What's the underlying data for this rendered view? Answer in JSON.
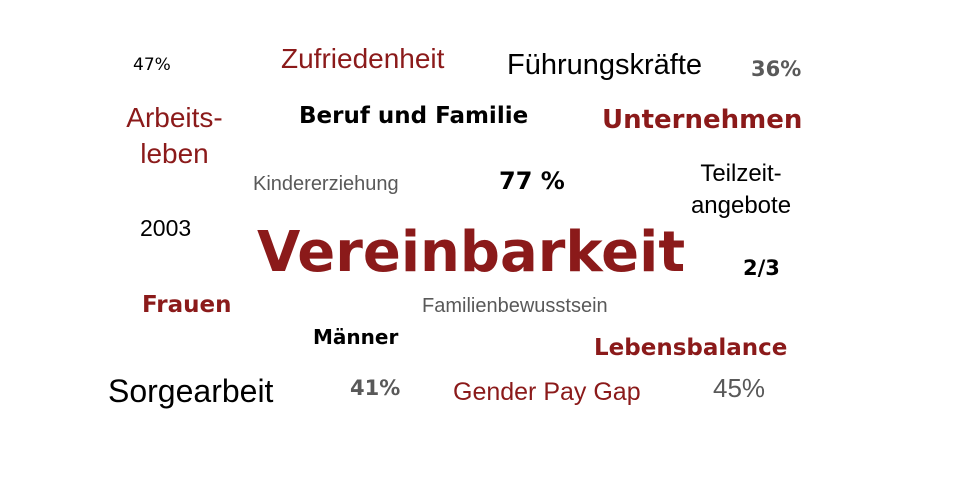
{
  "words": {
    "pct_47": "47%",
    "zufriedenheit": "Zufriedenheit",
    "fuehrungskraefte": "Führungskräfte",
    "pct_36": "36%",
    "arbeitsleben_1": "Arbeits-",
    "arbeitsleben_2": "leben",
    "beruf_und_familie": "Beruf und Familie",
    "unternehmen": "Unternehmen",
    "kindererziehung": "Kindererziehung",
    "pct_77": "77 %",
    "teilzeit_1": "Teilzeit-",
    "teilzeit_2": "angebote",
    "year_2003": "2003",
    "vereinbarkeit": "Vereinbarkeit",
    "two_thirds": "2/3",
    "frauen": "Frauen",
    "familienbewusstsein": "Familienbewusstsein",
    "maenner": "Männer",
    "lebensbalance": "Lebensbalance",
    "sorgearbeit": "Sorgearbeit",
    "pct_41": "41%",
    "gender_pay_gap": "Gender Pay Gap",
    "pct_45": "45%"
  },
  "colors": {
    "accent_red": "#8b1a1a",
    "black": "#000000",
    "gray": "#595959",
    "background": "#ffffff"
  }
}
